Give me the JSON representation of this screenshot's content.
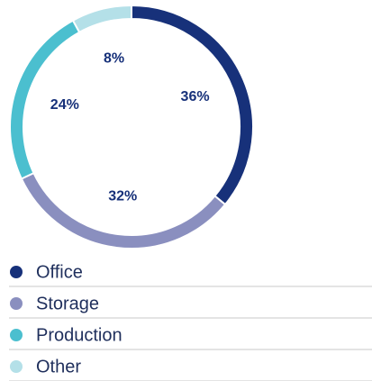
{
  "chart_data": {
    "type": "donut",
    "categories": [
      "Office",
      "Storage",
      "Production",
      "Other"
    ],
    "values": [
      36,
      32,
      24,
      8
    ],
    "value_labels": [
      "36%",
      "32%",
      "24%",
      "8%"
    ],
    "colors": [
      "#17317a",
      "#8a8fbf",
      "#4bbfcf",
      "#b4e0e8"
    ],
    "legend": "bottom"
  }
}
